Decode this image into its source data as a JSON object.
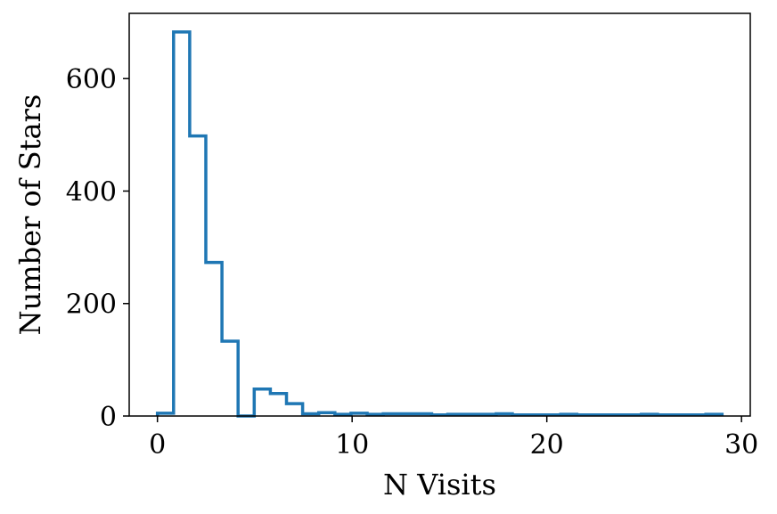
{
  "chart_data": {
    "type": "histogram",
    "style": "step",
    "title": "",
    "xlabel": "N Visits",
    "ylabel": "Number of Stars",
    "xlim": [
      -1.45,
      30.45
    ],
    "ylim": [
      0,
      716
    ],
    "xticks": [
      0,
      10,
      20,
      30
    ],
    "yticks": [
      0,
      200,
      400,
      600
    ],
    "grid": false,
    "legend": "none",
    "series": [
      {
        "color": "#1f77b4",
        "bin_edges": [
          0,
          0.8286,
          1.6571,
          2.4857,
          3.3143,
          4.1429,
          4.9714,
          5.8,
          6.6286,
          7.4571,
          8.2857,
          9.1143,
          9.9429,
          10.7714,
          11.6,
          12.4286,
          13.2571,
          14.0857,
          14.9143,
          15.7429,
          16.5714,
          17.4,
          18.2286,
          19.0571,
          19.8857,
          20.7143,
          21.5429,
          22.3714,
          23.2,
          24.0286,
          24.8571,
          25.6857,
          26.5143,
          27.3429,
          28.1714,
          29
        ],
        "counts": [
          5,
          683,
          498,
          273,
          133,
          0,
          48,
          40,
          22,
          4,
          6,
          3,
          5,
          3,
          4,
          4,
          4,
          2,
          3,
          3,
          3,
          4,
          2,
          2,
          2,
          3,
          2,
          2,
          2,
          2,
          3,
          2,
          2,
          2,
          3
        ]
      }
    ]
  }
}
